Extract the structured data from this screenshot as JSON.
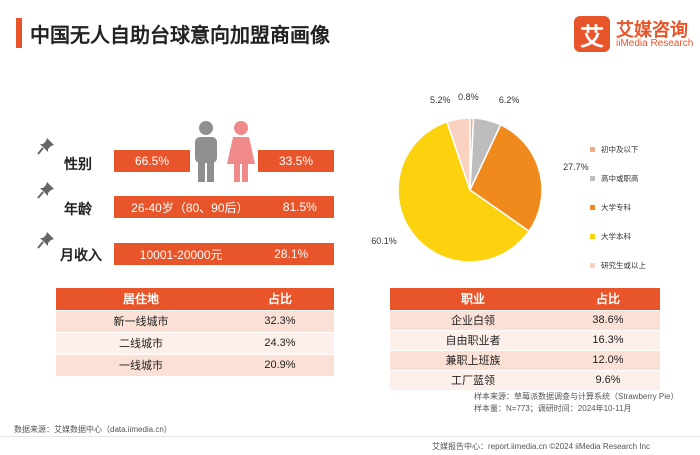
{
  "header": {
    "title": "中国无人自助台球意向加盟商画像",
    "logo_glyph": "艾",
    "logo_cn": "艾媒咨询",
    "logo_en": "iiMedia Research"
  },
  "profile": {
    "gender_label": "性别",
    "male_pct": "66.5%",
    "female_pct": "33.5%",
    "age_label": "年龄",
    "age_range": "26-40岁（80、90后）",
    "age_pct": "81.5%",
    "income_label": "月收入",
    "income_range": "10001-20000元",
    "income_pct": "28.1%"
  },
  "residence_table": {
    "headers": [
      "居住地",
      "占比"
    ],
    "rows": [
      [
        "新一线城市",
        "32.3%"
      ],
      [
        "二线城市",
        "24.3%"
      ],
      [
        "一线城市",
        "20.9%"
      ]
    ]
  },
  "occupation_table": {
    "headers": [
      "职业",
      "占比"
    ],
    "rows": [
      [
        "企业白领",
        "38.6%"
      ],
      [
        "自由职业者",
        "16.3%"
      ],
      [
        "兼职上班族",
        "12.0%"
      ],
      [
        "工厂蓝领",
        "9.6%"
      ]
    ]
  },
  "chart_data": {
    "type": "pie",
    "title": "",
    "series": [
      {
        "name": "初中及以下",
        "value": 0.8,
        "label": "0.8%",
        "color": "#f3a98a"
      },
      {
        "name": "高中或职高",
        "value": 6.2,
        "label": "6.2%",
        "color": "#bdbdbd"
      },
      {
        "name": "大学专科",
        "value": 27.7,
        "label": "27.7%",
        "color": "#f08a1c"
      },
      {
        "name": "大学本科",
        "value": 60.1,
        "label": "60.1%",
        "color": "#fcd20f"
      },
      {
        "name": "研究生或以上",
        "value": 5.2,
        "label": "5.2%",
        "color": "#f9d2c2"
      }
    ],
    "legend_position": "right"
  },
  "sources": {
    "data_source": "数据来源：艾媒数据中心（data.iimedia.cn）",
    "sample_source": "样本来源：草莓派数据调查与计算系统（Strawberry Pie）",
    "sample_size": "样本量：N=773；调研时间：2024年10-11月",
    "footer": "艾媒报告中心：report.iimedia.cn   ©2024  iiMedia Research  Inc"
  }
}
